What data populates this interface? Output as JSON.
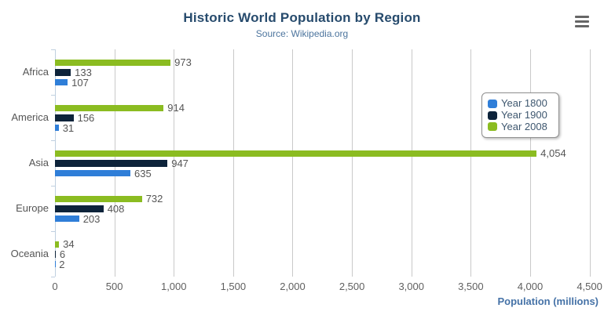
{
  "header": {
    "title": "Historic World Population by Region",
    "subtitle": "Source: Wikipedia.org"
  },
  "icons": {
    "context_menu": "hamburger-menu"
  },
  "colors": {
    "title": "#274b6d",
    "subtitle": "#4d759e",
    "axis_title": "#4572a7",
    "gridline": "#c9c9c9",
    "axis_line": "#c0d0e0",
    "label_gray": "#555555"
  },
  "chart_data": {
    "type": "bar",
    "title": "Historic World Population by Region",
    "subtitle": "Source: Wikipedia.org",
    "categories": [
      "Africa",
      "America",
      "Asia",
      "Europe",
      "Oceania"
    ],
    "series": [
      {
        "name": "Year 1800",
        "color": "#2f7ed8",
        "values": [
          107,
          31,
          635,
          203,
          2
        ]
      },
      {
        "name": "Year 1900",
        "color": "#0d233a",
        "values": [
          133,
          156,
          947,
          408,
          6
        ]
      },
      {
        "name": "Year 2008",
        "color": "#8bbc21",
        "values": [
          973,
          914,
          4054,
          732,
          34
        ]
      }
    ],
    "bar_order_top_to_bottom": [
      "Year 2008",
      "Year 1900",
      "Year 1800"
    ],
    "xlabel": "Population (millions)",
    "ylabel": "",
    "xlim": [
      0,
      4500
    ],
    "x_ticks": [
      0,
      500,
      1000,
      1500,
      2000,
      2500,
      3000,
      3500,
      4000,
      4500
    ],
    "grid": true,
    "legend_position": "right-overlay",
    "data_labels": true
  }
}
